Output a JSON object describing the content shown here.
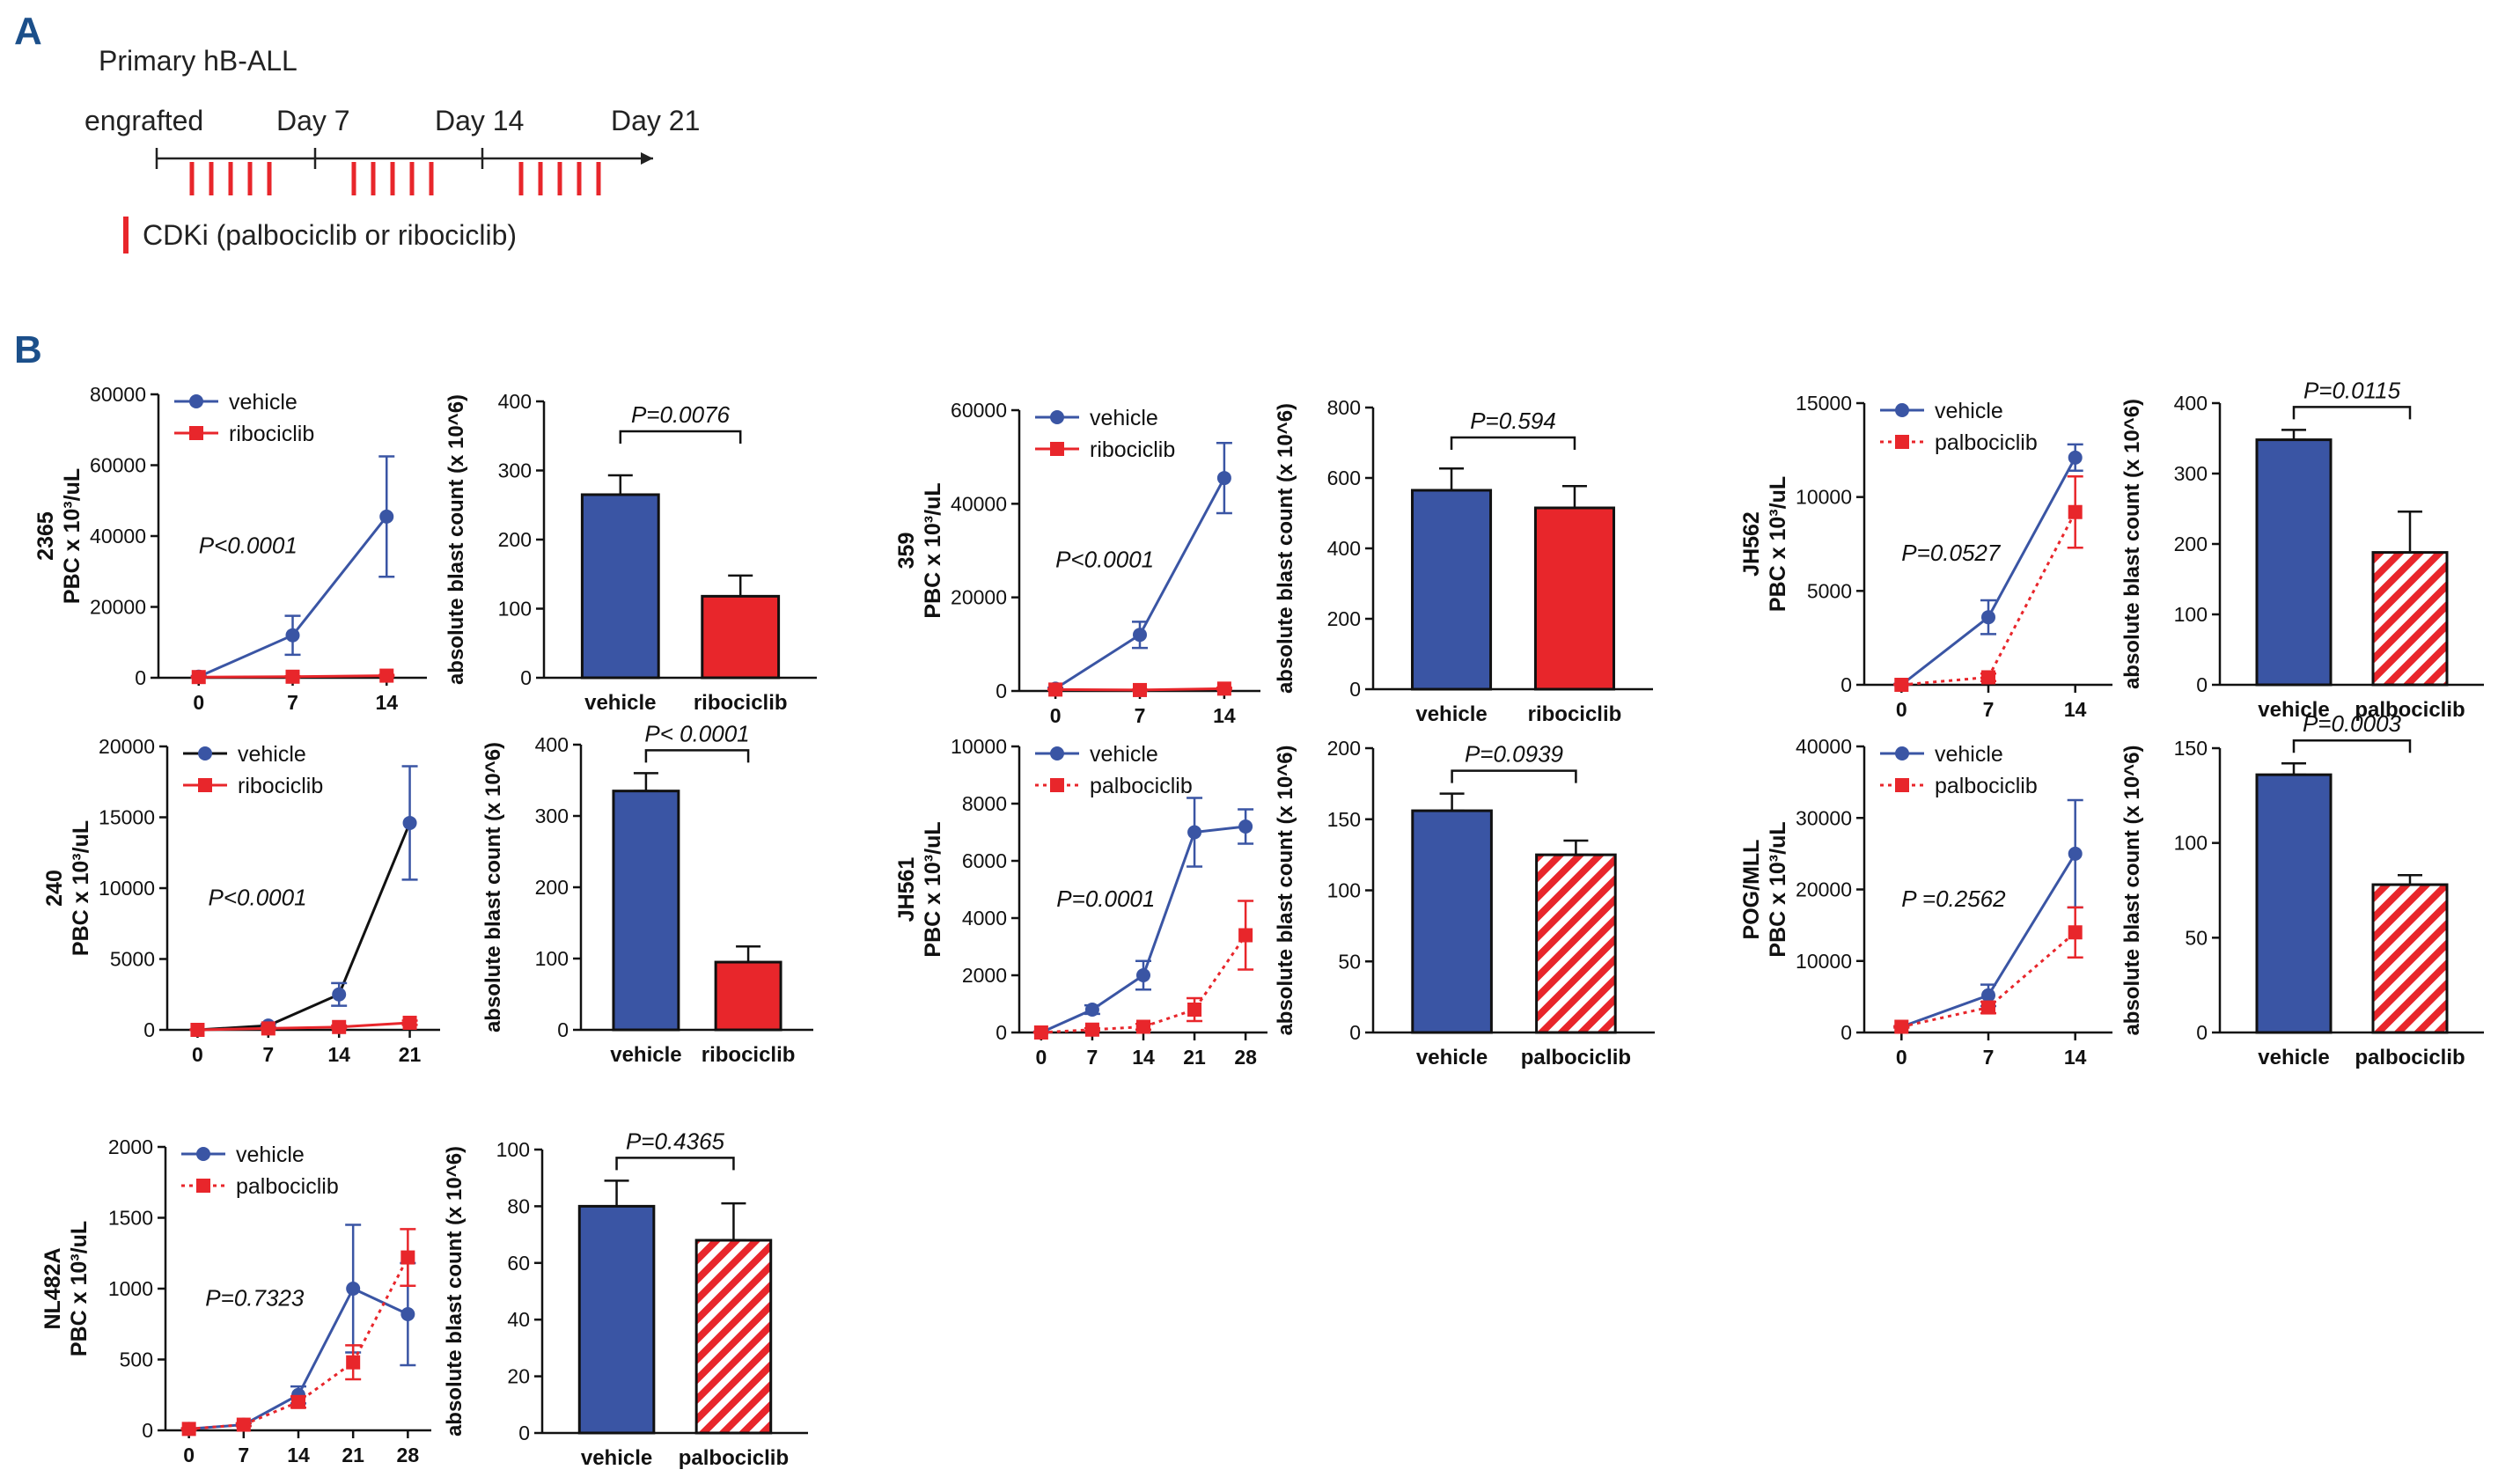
{
  "panel_a": {
    "label": "A",
    "title": "Primary hB-ALL",
    "timeline_labels": [
      "engrafted",
      "Day 7",
      "Day 14",
      "Day 21"
    ],
    "legend_text": "CDKi (palbociclib or ribociclib)",
    "dose_color": "#e8262b"
  },
  "panel_b": {
    "label": "B"
  },
  "colors": {
    "vehicle": "#3a55a4",
    "treated": "#e8262b",
    "black": "#111111"
  },
  "chart_data": [
    {
      "id": "2365-line",
      "type": "line",
      "sample": "2365",
      "ylabel": "PBC x 10³/uL",
      "x": [
        0,
        7,
        14
      ],
      "xlim": [
        -3,
        17
      ],
      "ylim": [
        0,
        80000
      ],
      "yticks": [
        0,
        20000,
        40000,
        60000,
        80000
      ],
      "series": [
        {
          "name": "vehicle",
          "values": [
            300,
            12000,
            45500
          ],
          "err": [
            200,
            5500,
            17000
          ],
          "color": "vehicle",
          "marker": "circle",
          "dashed": false
        },
        {
          "name": "ribociclib",
          "values": [
            200,
            300,
            600
          ],
          "err": [
            100,
            150,
            200
          ],
          "color": "treated",
          "marker": "square",
          "dashed": false
        }
      ],
      "pvalue": "P<0.0001"
    },
    {
      "id": "2365-bar",
      "type": "bar",
      "ylabel": "absolute blast count (x 10^6)",
      "categories": [
        "vehicle",
        "ribociclib"
      ],
      "values": [
        265,
        118
      ],
      "err": [
        28,
        30
      ],
      "fills": [
        "vehicle",
        "treated-solid"
      ],
      "ylim": [
        0,
        400
      ],
      "yticks": [
        0,
        100,
        200,
        300,
        400
      ],
      "pvalue": "P=0.0076"
    },
    {
      "id": "359-line",
      "type": "line",
      "sample": "359",
      "ylabel": "PBC x 10³/uL",
      "x": [
        0,
        7,
        14
      ],
      "xlim": [
        -3,
        17
      ],
      "ylim": [
        0,
        60000
      ],
      "yticks": [
        0,
        20000,
        40000,
        60000
      ],
      "series": [
        {
          "name": "vehicle",
          "values": [
            500,
            12000,
            45500
          ],
          "err": [
            200,
            2800,
            7500
          ],
          "color": "vehicle",
          "marker": "circle",
          "dashed": false
        },
        {
          "name": "ribociclib",
          "values": [
            300,
            200,
            500
          ],
          "err": [
            100,
            100,
            200
          ],
          "color": "treated",
          "marker": "square",
          "dashed": false
        }
      ],
      "pvalue": "P<0.0001"
    },
    {
      "id": "359-bar",
      "type": "bar",
      "ylabel": "absolute blast count (x 10^6)",
      "categories": [
        "vehicle",
        "ribociclib"
      ],
      "values": [
        565,
        515
      ],
      "err": [
        62,
        62
      ],
      "fills": [
        "vehicle",
        "treated-solid"
      ],
      "ylim": [
        0,
        800
      ],
      "yticks": [
        0,
        200,
        400,
        600,
        800
      ],
      "pvalue": "P=0.594"
    },
    {
      "id": "JH562-line",
      "type": "line",
      "sample": "JH562",
      "ylabel": "PBC x 10³/uL",
      "x": [
        0,
        7,
        14
      ],
      "xlim": [
        -3,
        17
      ],
      "ylim": [
        0,
        15000
      ],
      "yticks": [
        0,
        5000,
        10000,
        15000
      ],
      "series": [
        {
          "name": "vehicle",
          "values": [
            0,
            3600,
            12100
          ],
          "err": [
            50,
            900,
            700
          ],
          "color": "vehicle",
          "marker": "circle",
          "dashed": false
        },
        {
          "name": "palbociclib",
          "values": [
            0,
            400,
            9200
          ],
          "err": [
            30,
            200,
            1900
          ],
          "color": "treated",
          "marker": "square",
          "dashed": true
        }
      ],
      "pvalue": "P=0.0527"
    },
    {
      "id": "JH562-bar",
      "type": "bar",
      "ylabel": "absolute blast count (x 10^6)",
      "categories": [
        "vehicle",
        "palbociclib"
      ],
      "values": [
        348,
        188
      ],
      "err": [
        14,
        58
      ],
      "fills": [
        "vehicle",
        "treated-hatch"
      ],
      "ylim": [
        0,
        400
      ],
      "yticks": [
        0,
        100,
        200,
        300,
        400
      ],
      "pvalue": "P=0.0115"
    },
    {
      "id": "240-line",
      "type": "line",
      "sample": "240",
      "ylabel": "PBC x 10³/uL",
      "x": [
        0,
        7,
        14,
        21
      ],
      "xlim": [
        -3,
        24
      ],
      "ylim": [
        0,
        20000
      ],
      "yticks": [
        0,
        5000,
        10000,
        15000,
        20000
      ],
      "series": [
        {
          "name": "vehicle",
          "values": [
            0,
            300,
            2500,
            14600
          ],
          "err": [
            30,
            100,
            800,
            4000
          ],
          "color": "black",
          "marker": "circle",
          "dashed": false,
          "pointColor": "vehicle"
        },
        {
          "name": "ribociclib",
          "values": [
            0,
            100,
            200,
            500
          ],
          "err": [
            20,
            50,
            100,
            150
          ],
          "color": "treated",
          "marker": "square",
          "dashed": false
        }
      ],
      "pvalue": "P<0.0001"
    },
    {
      "id": "240-bar",
      "type": "bar",
      "ylabel": "absolute blast count (x 10^6)",
      "categories": [
        "vehicle",
        "ribociclib"
      ],
      "values": [
        335,
        95
      ],
      "err": [
        25,
        22
      ],
      "fills": [
        "vehicle",
        "treated-solid"
      ],
      "ylim": [
        0,
        400
      ],
      "yticks": [
        0,
        100,
        200,
        300,
        400
      ],
      "pvalue": "P< 0.0001"
    },
    {
      "id": "JH561-line",
      "type": "line",
      "sample": "JH561",
      "ylabel": "PBC x 10³/uL",
      "x": [
        0,
        7,
        14,
        21,
        28
      ],
      "xlim": [
        -3,
        31
      ],
      "ylim": [
        0,
        10000
      ],
      "yticks": [
        0,
        2000,
        4000,
        6000,
        8000,
        10000
      ],
      "series": [
        {
          "name": "vehicle",
          "values": [
            0,
            800,
            2000,
            7000,
            7200
          ],
          "err": [
            30,
            150,
            500,
            1200,
            600
          ],
          "color": "vehicle",
          "marker": "circle",
          "dashed": false
        },
        {
          "name": "palbociclib",
          "values": [
            0,
            100,
            200,
            800,
            3400
          ],
          "err": [
            20,
            50,
            100,
            400,
            1200
          ],
          "color": "treated",
          "marker": "square",
          "dashed": true
        }
      ],
      "pvalue": "P=0.0001"
    },
    {
      "id": "JH561-bar",
      "type": "bar",
      "ylabel": "absolute blast count (x 10^6)",
      "categories": [
        "vehicle",
        "palbociclib"
      ],
      "values": [
        156,
        125
      ],
      "err": [
        12,
        10
      ],
      "fills": [
        "vehicle",
        "treated-hatch"
      ],
      "ylim": [
        0,
        200
      ],
      "yticks": [
        0,
        50,
        100,
        150,
        200
      ],
      "pvalue": "P=0.0939"
    },
    {
      "id": "POGMLL-line",
      "type": "line",
      "sample": "POG/MLL",
      "ylabel": "PBC x 10³/uL",
      "x": [
        0,
        7,
        14
      ],
      "xlim": [
        -3,
        17
      ],
      "ylim": [
        0,
        40000
      ],
      "yticks": [
        0,
        10000,
        20000,
        30000,
        40000
      ],
      "series": [
        {
          "name": "vehicle",
          "values": [
            800,
            5200,
            25000
          ],
          "err": [
            100,
            1500,
            7500
          ],
          "color": "vehicle",
          "marker": "circle",
          "dashed": false
        },
        {
          "name": "palbociclib",
          "values": [
            800,
            3500,
            14000
          ],
          "err": [
            100,
            800,
            3500
          ],
          "color": "treated",
          "marker": "square",
          "dashed": true
        }
      ],
      "pvalue": "P =0.2562"
    },
    {
      "id": "POGMLL-bar",
      "type": "bar",
      "ylabel": "absolute blast count (x 10^6)",
      "categories": [
        "vehicle",
        "palbociclib"
      ],
      "values": [
        136,
        78
      ],
      "err": [
        6,
        5
      ],
      "fills": [
        "vehicle",
        "treated-hatch"
      ],
      "ylim": [
        0,
        150
      ],
      "yticks": [
        0,
        50,
        100,
        150
      ],
      "pvalue": "P=0.0003"
    },
    {
      "id": "NL482A-line",
      "type": "line",
      "sample": "NL482A",
      "ylabel": "PBC x 10³/uL",
      "x": [
        0,
        7,
        14,
        21,
        28
      ],
      "xlim": [
        -3,
        31
      ],
      "ylim": [
        0,
        2000
      ],
      "yticks": [
        0,
        500,
        1000,
        1500,
        2000
      ],
      "series": [
        {
          "name": "vehicle",
          "values": [
            10,
            40,
            250,
            1000,
            820
          ],
          "err": [
            5,
            10,
            60,
            450,
            360
          ],
          "color": "vehicle",
          "marker": "circle",
          "dashed": false
        },
        {
          "name": "palbociclib",
          "values": [
            10,
            40,
            200,
            480,
            1220
          ],
          "err": [
            5,
            10,
            40,
            120,
            200
          ],
          "color": "treated",
          "marker": "square",
          "dashed": true
        }
      ],
      "pvalue": "P=0.7323"
    },
    {
      "id": "NL482A-bar",
      "type": "bar",
      "ylabel": "absolute blast count (x 10^6)",
      "categories": [
        "vehicle",
        "palbociclib"
      ],
      "values": [
        80,
        68
      ],
      "err": [
        9,
        13
      ],
      "fills": [
        "vehicle",
        "treated-hatch"
      ],
      "ylim": [
        0,
        100
      ],
      "yticks": [
        0,
        20,
        40,
        60,
        80,
        100
      ],
      "pvalue": "P=0.4365"
    }
  ]
}
